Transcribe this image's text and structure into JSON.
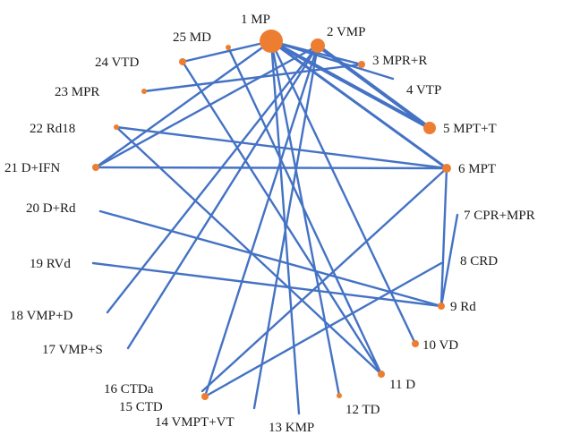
{
  "diagram": {
    "colors": {
      "edge": "#4472C4",
      "node": "#ED7D31",
      "label": "#1a1a1a"
    },
    "nodes": [
      {
        "id": 1,
        "label": "1 MP"
      },
      {
        "id": 2,
        "label": "2 VMP"
      },
      {
        "id": 3,
        "label": "3 MPR+R"
      },
      {
        "id": 4,
        "label": "4 VTP"
      },
      {
        "id": 5,
        "label": "5 MPT+T"
      },
      {
        "id": 6,
        "label": "6 MPT"
      },
      {
        "id": 7,
        "label": "7 CPR+MPR"
      },
      {
        "id": 8,
        "label": "8 CRD"
      },
      {
        "id": 9,
        "label": "9 Rd"
      },
      {
        "id": 10,
        "label": "10 VD"
      },
      {
        "id": 11,
        "label": "11 D"
      },
      {
        "id": 12,
        "label": "12 TD"
      },
      {
        "id": 13,
        "label": "13 KMP"
      },
      {
        "id": 14,
        "label": "14 VMPT+VT"
      },
      {
        "id": 15,
        "label": "15 CTD"
      },
      {
        "id": 16,
        "label": "16 CTDa"
      },
      {
        "id": 17,
        "label": "17 VMP+S"
      },
      {
        "id": 18,
        "label": "18 VMP+D"
      },
      {
        "id": 19,
        "label": "19 RVd"
      },
      {
        "id": 20,
        "label": "20 D+Rd"
      },
      {
        "id": 21,
        "label": "21 D+IFN"
      },
      {
        "id": 22,
        "label": "22 Rd18"
      },
      {
        "id": 23,
        "label": "23 MPR"
      },
      {
        "id": 24,
        "label": "24 VTD"
      },
      {
        "id": 25,
        "label": "25 MD"
      }
    ],
    "edges": [
      {
        "from": 1,
        "to": 5
      },
      {
        "from": 1,
        "to": 6
      },
      {
        "from": 1,
        "to": 3
      },
      {
        "from": 1,
        "to": 4
      },
      {
        "from": 1,
        "to": 10
      },
      {
        "from": 1,
        "to": 12
      },
      {
        "from": 1,
        "to": 13
      },
      {
        "from": 1,
        "to": 21
      },
      {
        "from": 1,
        "to": 24
      },
      {
        "from": 2,
        "to": 5
      },
      {
        "from": 2,
        "to": 14
      },
      {
        "from": 2,
        "to": 15
      },
      {
        "from": 2,
        "to": 18
      },
      {
        "from": 2,
        "to": 17
      },
      {
        "from": 2,
        "to": 21
      },
      {
        "from": 25,
        "to": 11
      },
      {
        "from": 24,
        "to": 11
      },
      {
        "from": 3,
        "to": 23
      },
      {
        "from": 22,
        "to": 6
      },
      {
        "from": 22,
        "to": 11
      },
      {
        "from": 21,
        "to": 6
      },
      {
        "from": 20,
        "to": 9
      },
      {
        "from": 19,
        "to": 9
      },
      {
        "from": 6,
        "to": 9
      },
      {
        "from": 7,
        "to": 9
      },
      {
        "from": 8,
        "to": 15
      },
      {
        "from": 6,
        "to": 16
      }
    ]
  }
}
